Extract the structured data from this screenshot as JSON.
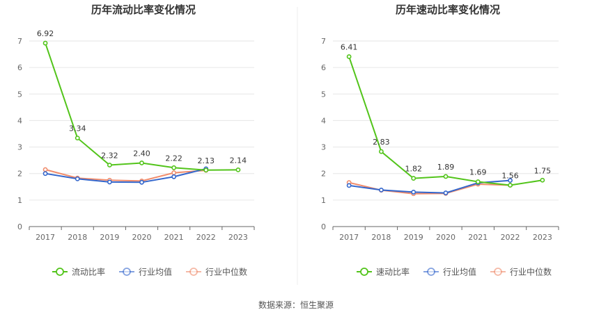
{
  "source": "数据来源：恒生聚源",
  "colors": {
    "primary": "#52c41a",
    "average": "#3366cc",
    "median": "#f08c6c",
    "grid": "#e6e6e6",
    "axis": "#666666"
  },
  "chart_data": [
    {
      "type": "line",
      "title": "历年流动比率变化情况",
      "categories": [
        "2017",
        "2018",
        "2019",
        "2020",
        "2021",
        "2022",
        "2023"
      ],
      "ylim": [
        0,
        7
      ],
      "yticks": [
        "0",
        "1",
        "2",
        "3",
        "4",
        "5",
        "6",
        "7"
      ],
      "grid": true,
      "legend_position": "bottom",
      "series": [
        {
          "name": "流动比率",
          "values": [
            6.92,
            3.34,
            2.32,
            2.4,
            2.22,
            2.13,
            2.14
          ],
          "labels": [
            "6.92",
            "3.34",
            "2.32",
            "2.40",
            "2.22",
            "2.13",
            "2.14"
          ]
        },
        {
          "name": "行业均值",
          "values": [
            2.0,
            1.8,
            1.68,
            1.67,
            1.88,
            2.18,
            null
          ]
        },
        {
          "name": "行业中位数",
          "values": [
            2.15,
            1.83,
            1.75,
            1.72,
            2.03,
            2.12,
            null
          ]
        }
      ]
    },
    {
      "type": "line",
      "title": "历年速动比率变化情况",
      "categories": [
        "2017",
        "2018",
        "2019",
        "2020",
        "2021",
        "2022",
        "2023"
      ],
      "ylim": [
        0,
        7
      ],
      "yticks": [
        "0",
        "1",
        "2",
        "3",
        "4",
        "5",
        "6",
        "7"
      ],
      "grid": true,
      "legend_position": "bottom",
      "series": [
        {
          "name": "速动比率",
          "values": [
            6.41,
            2.83,
            1.82,
            1.89,
            1.69,
            1.56,
            1.75
          ],
          "labels": [
            "6.41",
            "2.83",
            "1.82",
            "1.89",
            "1.69",
            "1.56",
            "1.75"
          ]
        },
        {
          "name": "行业均值",
          "values": [
            1.55,
            1.38,
            1.3,
            1.27,
            1.65,
            1.74,
            null
          ]
        },
        {
          "name": "行业中位数",
          "values": [
            1.66,
            1.37,
            1.24,
            1.25,
            1.6,
            1.56,
            null
          ]
        }
      ]
    }
  ]
}
